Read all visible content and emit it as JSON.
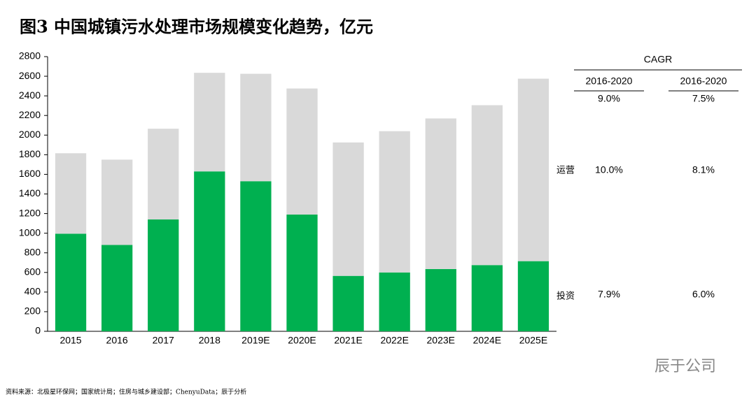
{
  "chart_data": {
    "type": "stacked_bar",
    "title": "图3 中国城镇污水处理市场规模变化趋势，亿元",
    "categories": [
      "2015",
      "2016",
      "2017",
      "2018",
      "2019E",
      "2020E",
      "2021E",
      "2022E",
      "2023E",
      "2024E",
      "2025E"
    ],
    "series": [
      {
        "color": "#00b050",
        "values": [
          995,
          880,
          1140,
          1630,
          1530,
          1190,
          565,
          600,
          635,
          675,
          715
        ]
      },
      {
        "color": "#d9d9d9",
        "values": [
          820,
          870,
          925,
          1005,
          1095,
          1285,
          1360,
          1440,
          1535,
          1630,
          1860
        ]
      }
    ],
    "ylim": [
      0,
      2800
    ],
    "yticks": [
      0,
      200,
      400,
      600,
      800,
      1000,
      1200,
      1400,
      1600,
      1800,
      2000,
      2200,
      2400,
      2600,
      2800
    ]
  },
  "cagr_table": {
    "title": "CAGR",
    "columns": [
      "2016-2020",
      "2016-2020"
    ],
    "rows": [
      {
        "cells": [
          "9.0%",
          "7.5%"
        ]
      },
      {
        "label": "运营",
        "cells": [
          "10.0%",
          "8.1%"
        ]
      },
      {
        "label": "投资",
        "cells": [
          "7.9%",
          "6.0%"
        ]
      }
    ]
  },
  "source": "资料来源：北极星环保网；国家统计局；住房与城乡建设部；ChenyuData；辰于分析",
  "watermark": "辰于公司"
}
